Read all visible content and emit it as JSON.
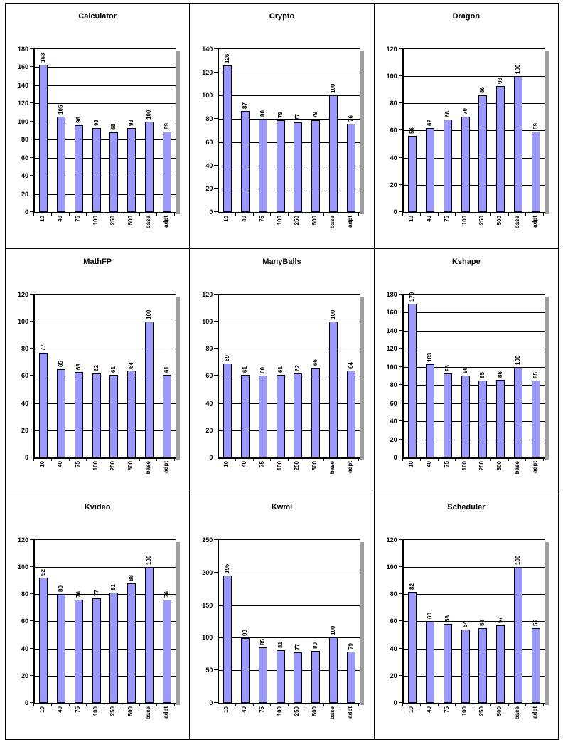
{
  "page": {
    "background": "#ffffff",
    "frame_color": "#000000"
  },
  "style": {
    "bar_fill": "#9999ff",
    "bar_border": "#000000",
    "gridline_color": "#000000",
    "shadow_color": "#9e9e9e",
    "text_color": "#000000"
  },
  "chart_data": [
    {
      "type": "bar",
      "title": "Calculator",
      "categories": [
        "10",
        "40",
        "75",
        "100",
        "250",
        "500",
        "base",
        "adpt"
      ],
      "values": [
        163,
        105,
        96,
        93,
        88,
        93,
        100,
        89
      ],
      "ylim": [
        0,
        180
      ],
      "yticks": [
        0,
        20,
        40,
        60,
        80,
        100,
        120,
        140,
        160,
        180
      ],
      "grid": true,
      "legend": "none"
    },
    {
      "type": "bar",
      "title": "Crypto",
      "categories": [
        "10",
        "40",
        "75",
        "100",
        "250",
        "500",
        "base",
        "adpt"
      ],
      "values": [
        126,
        87,
        80,
        79,
        77,
        79,
        100,
        76
      ],
      "ylim": [
        0,
        140
      ],
      "yticks": [
        0,
        20,
        40,
        60,
        80,
        100,
        120,
        140
      ],
      "grid": true,
      "legend": "none"
    },
    {
      "type": "bar",
      "title": "Dragon",
      "categories": [
        "10",
        "40",
        "75",
        "100",
        "250",
        "500",
        "base",
        "adpt"
      ],
      "values": [
        56,
        62,
        68,
        70,
        86,
        93,
        100,
        59
      ],
      "ylim": [
        0,
        120
      ],
      "yticks": [
        0,
        20,
        40,
        60,
        80,
        100,
        120
      ],
      "grid": true,
      "legend": "none"
    },
    {
      "type": "bar",
      "title": "MathFP",
      "categories": [
        "10",
        "40",
        "75",
        "100",
        "250",
        "500",
        "base",
        "adpt"
      ],
      "values": [
        77,
        65,
        63,
        62,
        61,
        64,
        100,
        61
      ],
      "ylim": [
        0,
        120
      ],
      "yticks": [
        0,
        20,
        40,
        60,
        80,
        100,
        120
      ],
      "grid": true,
      "legend": "none"
    },
    {
      "type": "bar",
      "title": "ManyBalls",
      "categories": [
        "10",
        "40",
        "75",
        "100",
        "250",
        "500",
        "base",
        "adpt"
      ],
      "values": [
        69,
        61,
        60,
        61,
        62,
        66,
        100,
        64
      ],
      "ylim": [
        0,
        120
      ],
      "yticks": [
        0,
        20,
        40,
        60,
        80,
        100,
        120
      ],
      "grid": true,
      "legend": "none"
    },
    {
      "type": "bar",
      "title": "Kshape",
      "categories": [
        "10",
        "40",
        "75",
        "100",
        "250",
        "500",
        "base",
        "adpt"
      ],
      "values": [
        170,
        103,
        93,
        90,
        85,
        86,
        100,
        85
      ],
      "ylim": [
        0,
        180
      ],
      "yticks": [
        0,
        20,
        40,
        60,
        80,
        100,
        120,
        140,
        160,
        180
      ],
      "grid": true,
      "legend": "none"
    },
    {
      "type": "bar",
      "title": "Kvideo",
      "categories": [
        "10",
        "40",
        "75",
        "100",
        "250",
        "500",
        "base",
        "adpt"
      ],
      "values": [
        92,
        80,
        76,
        77,
        81,
        88,
        100,
        76
      ],
      "ylim": [
        0,
        120
      ],
      "yticks": [
        0,
        20,
        40,
        60,
        80,
        100,
        120
      ],
      "grid": true,
      "legend": "none"
    },
    {
      "type": "bar",
      "title": "Kwml",
      "categories": [
        "10",
        "40",
        "75",
        "100",
        "250",
        "500",
        "base",
        "adpt"
      ],
      "values": [
        195,
        99,
        85,
        81,
        77,
        80,
        100,
        79
      ],
      "ylim": [
        0,
        250
      ],
      "yticks": [
        0,
        50,
        100,
        150,
        200,
        250
      ],
      "grid": true,
      "legend": "none"
    },
    {
      "type": "bar",
      "title": "Scheduler",
      "categories": [
        "10",
        "40",
        "75",
        "100",
        "250",
        "500",
        "base",
        "adpt"
      ],
      "values": [
        82,
        60,
        58,
        54,
        55,
        57,
        100,
        55
      ],
      "ylim": [
        0,
        120
      ],
      "yticks": [
        0,
        20,
        40,
        60,
        80,
        100,
        120
      ],
      "grid": true,
      "legend": "none"
    }
  ]
}
